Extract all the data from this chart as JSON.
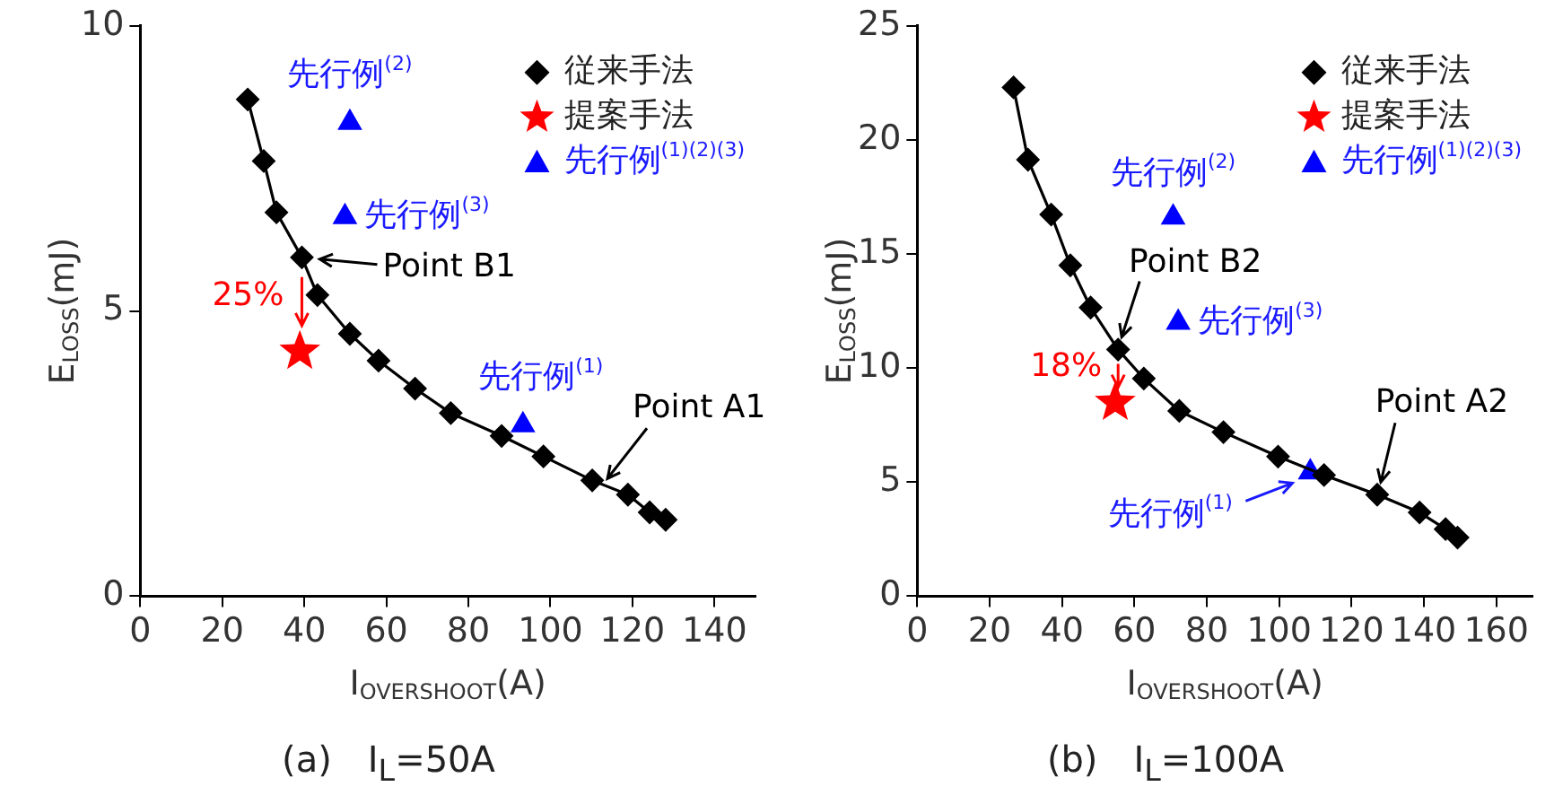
{
  "chart_data": [
    {
      "type": "scatter",
      "xlabel": "I$_{OVERSHOOT}$(A)",
      "ylabel": "E$_{LOSS}$(mJ)",
      "xlim": [
        0,
        150
      ],
      "xticks": [
        0,
        20,
        40,
        60,
        80,
        100,
        120,
        140
      ],
      "ylim": [
        0,
        10
      ],
      "yticks": [
        0,
        5,
        10
      ],
      "grid": false,
      "legend": "top right",
      "series": [
        {
          "name": "従来手法",
          "type": "line",
          "marker": "diamond",
          "color": "#000000",
          "x": [
            26.2,
            30.1,
            33.2,
            39.4,
            43.2,
            51.1,
            58.1,
            67.0,
            75.7,
            88.1,
            98.3,
            110.2,
            118.9,
            124.2,
            128.1
          ],
          "values": [
            8.71,
            7.63,
            6.73,
            5.94,
            5.28,
            4.6,
            4.13,
            3.64,
            3.21,
            2.81,
            2.45,
            2.03,
            1.78,
            1.47,
            1.34
          ]
        },
        {
          "name": "提案手法",
          "type": "scatter",
          "marker": "star",
          "color": "#ff0000",
          "x": [
            38.9
          ],
          "values": [
            4.29
          ]
        },
        {
          "name": "先行例$^{(1)(2)(3)}$",
          "type": "scatter",
          "marker": "triangle",
          "color": "#0000ff",
          "x": [
            51.1,
            49.9,
            93.3
          ],
          "values": [
            8.3,
            6.65,
            3.0
          ]
        }
      ],
      "annotations": [
        {
          "text": "先行例$^{(2)}$",
          "x": 51.1,
          "y": 8.3
        },
        {
          "text": "先行例$^{(3)}$",
          "x": 49.9,
          "y": 6.65
        },
        {
          "text": "先行例$^{(1)}$",
          "x": 93.3,
          "y": 3.0
        },
        {
          "text": "Point B1",
          "x": 39.4,
          "y": 5.94
        },
        "25%",
        {
          "text": "Point A1",
          "x": 112.6,
          "y": 2.0
        },
        "(a)　I$_{L}$=50A"
      ]
    },
    {
      "type": "scatter",
      "xlabel": "I$_{OVERSHOOT}$(A)",
      "ylabel": "E$_{LOSS}$(mJ)",
      "xlim": [
        0,
        170
      ],
      "xticks": [
        0,
        20,
        40,
        60,
        80,
        100,
        120,
        140,
        160
      ],
      "ylim": [
        0,
        25
      ],
      "yticks": [
        0,
        5,
        10,
        15,
        20,
        25
      ],
      "grid": false,
      "legend": "top right",
      "series": [
        {
          "name": "従来手法",
          "type": "line",
          "marker": "diamond",
          "color": "#000000",
          "x": [
            26.6,
            30.6,
            37.0,
            42.3,
            47.9,
            55.5,
            62.6,
            72.4,
            84.6,
            99.7,
            112.4,
            127.1,
            138.8,
            146.0,
            149.3
          ],
          "values": [
            22.3,
            19.13,
            16.73,
            14.5,
            12.65,
            10.81,
            9.54,
            8.12,
            7.19,
            6.12,
            5.31,
            4.45,
            3.67,
            2.94,
            2.57
          ]
        },
        {
          "name": "提案手法",
          "type": "scatter",
          "marker": "star",
          "color": "#ff0000",
          "x": [
            54.7
          ],
          "values": [
            8.49
          ]
        },
        {
          "name": "先行例$^{(1)(2)(3)}$",
          "type": "scatter",
          "marker": "triangle",
          "color": "#0000ff",
          "x": [
            108.6,
            70.7,
            72.1
          ],
          "values": [
            5.43,
            16.6,
            11.99
          ]
        }
      ],
      "annotations": [
        {
          "text": "先行例$^{(2)}$",
          "x": 70.7,
          "y": 16.6
        },
        {
          "text": "先行例$^{(3)}$",
          "x": 72.1,
          "y": 11.99
        },
        {
          "text": "先行例$^{(1)}$",
          "x": 108.6,
          "y": 5.43
        },
        {
          "text": "Point B2",
          "x": 55.5,
          "y": 10.81
        },
        "18%",
        {
          "text": "Point A2",
          "x": 127.1,
          "y": 4.45
        },
        "(b)　I$_{L}$=100A"
      ]
    }
  ]
}
